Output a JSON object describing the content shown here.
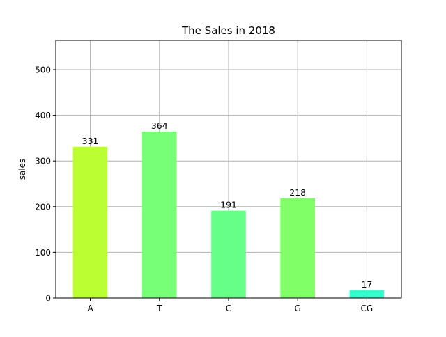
{
  "chart_data": {
    "type": "bar",
    "title": "The Sales in 2018",
    "xlabel": "",
    "ylabel": "sales",
    "categories": [
      "A",
      "T",
      "C",
      "G",
      "CG"
    ],
    "values": [
      331,
      364,
      191,
      218,
      17
    ],
    "bar_colors": [
      "#bbff33",
      "#77ff77",
      "#66ff88",
      "#80ff66",
      "#33ffcc"
    ],
    "data_labels": [
      "331",
      "364",
      "191",
      "218",
      "17"
    ],
    "ylim": [
      0,
      564
    ],
    "yticks": [
      0,
      100,
      200,
      300,
      400,
      500
    ],
    "ytick_labels": [
      "0",
      "100",
      "200",
      "300",
      "400",
      "500"
    ],
    "grid": true,
    "legend": "none"
  }
}
